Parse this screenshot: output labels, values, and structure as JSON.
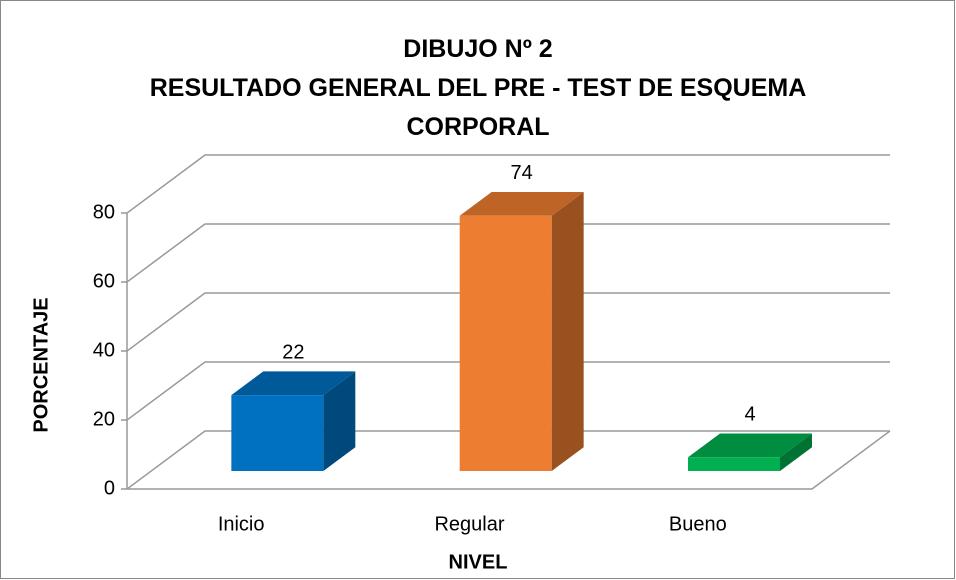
{
  "chart_data": {
    "type": "bar3d",
    "title": "DIBUJO Nº 2",
    "subtitle": "RESULTADO GENERAL DEL PRE - TEST DE ESQUEMA CORPORAL",
    "x_label": "NIVEL",
    "y_label": "PORCENTAJE",
    "categories": [
      "Inicio",
      "Regular",
      "Bueno"
    ],
    "values": [
      22,
      74,
      4
    ],
    "colors": [
      "#0070c0",
      "#ed7d31",
      "#00b050"
    ],
    "ylim": [
      0,
      80
    ],
    "yticks": [
      0,
      20,
      40,
      60,
      80
    ],
    "grid": true
  }
}
